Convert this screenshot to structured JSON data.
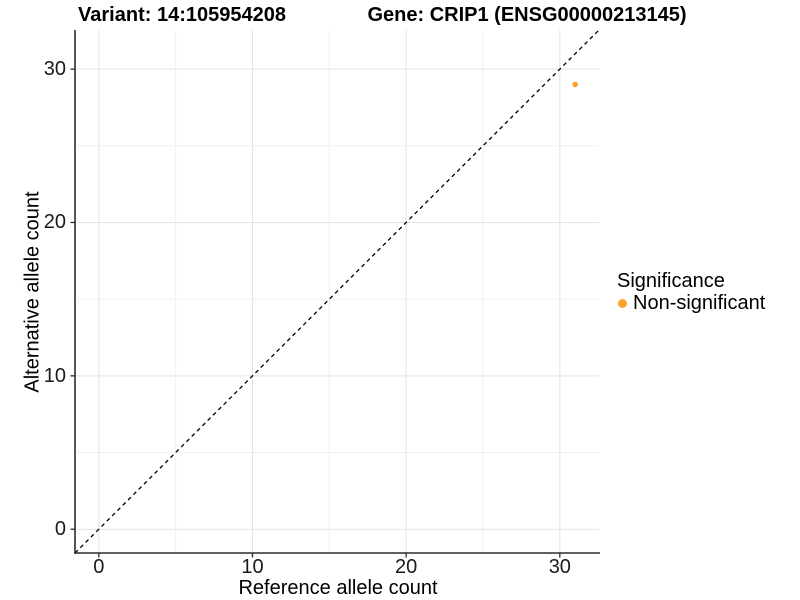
{
  "chart_data": {
    "type": "scatter",
    "titles": {
      "left": "Variant: 14:105954208",
      "right": "Gene: CRIP1 (ENSG00000213145)"
    },
    "xlabel": "Reference allele count",
    "ylabel": "Alternative allele count",
    "xlim": [
      -1.55,
      32.55
    ],
    "ylim": [
      -1.55,
      32.55
    ],
    "x_ticks": [
      0,
      10,
      20,
      30
    ],
    "y_ticks": [
      0,
      10,
      20,
      30
    ],
    "x_minor_ticks": [
      5,
      15,
      25
    ],
    "y_minor_ticks": [
      5,
      15,
      25
    ],
    "grid": "major+minor",
    "legend_position": "right",
    "series": [
      {
        "name": "Non-significant",
        "color": "#FCA22C",
        "points": [
          {
            "x": 31,
            "y": 29
          }
        ]
      }
    ],
    "reference_line": {
      "kind": "y=x",
      "style": "dashed",
      "color": "#000000"
    },
    "legend": {
      "title": "Significance",
      "items": [
        {
          "label": "Non-significant",
          "color": "#FCA22C"
        }
      ]
    },
    "theme": {
      "background": "#ffffff",
      "axis_line_color": "#2b2b2b",
      "tick_mark_color": "#2b2b2b",
      "major_grid_color": "#e3e3e3",
      "minor_grid_color": "#f0f0f0",
      "text_color": "#1a1a1a"
    }
  }
}
